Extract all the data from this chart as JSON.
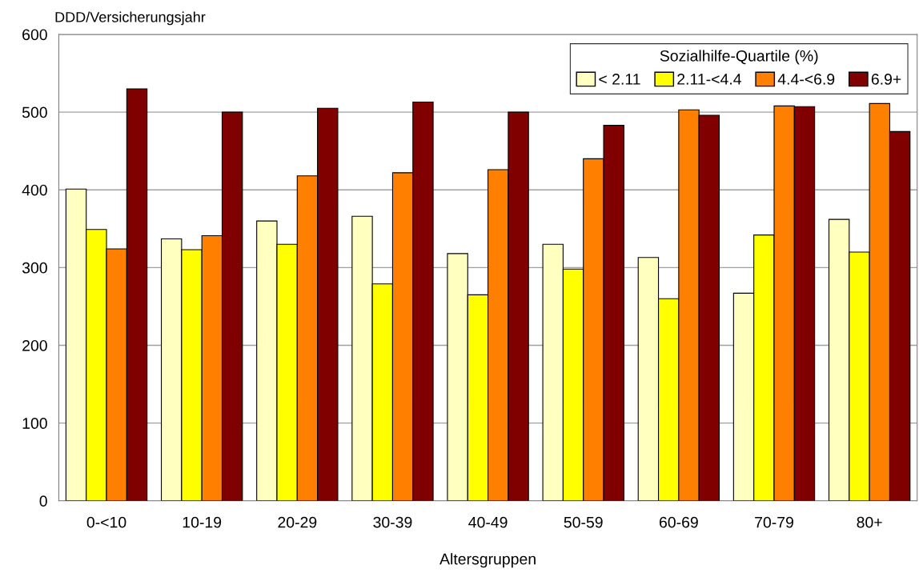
{
  "chart_data": {
    "type": "bar",
    "ylabel": "DDD/Versicherungsjahr",
    "xlabel": "Altersgruppen",
    "legend_title": "Sozialhilfe-Quartile (%)",
    "categories": [
      "0-<10",
      "10-19",
      "20-29",
      "30-39",
      "40-49",
      "50-59",
      "60-69",
      "70-79",
      "80+"
    ],
    "series": [
      {
        "name": "< 2.11",
        "color": "#ffffc0",
        "values": [
          401,
          337,
          360,
          366,
          318,
          330,
          313,
          267,
          362
        ]
      },
      {
        "name": "2.11-<4.4",
        "color": "#ffff00",
        "values": [
          349,
          323,
          330,
          279,
          265,
          298,
          260,
          342,
          320
        ]
      },
      {
        "name": "4.4-<6.9",
        "color": "#ff8000",
        "values": [
          324,
          341,
          418,
          422,
          426,
          440,
          503,
          508,
          511
        ]
      },
      {
        "name": "6.9+",
        "color": "#800000",
        "values": [
          530,
          500,
          505,
          513,
          500,
          483,
          496,
          507,
          475
        ]
      }
    ],
    "ylim": [
      0,
      600
    ],
    "yticks": [
      0,
      100,
      200,
      300,
      400,
      500,
      600
    ],
    "grid": "y",
    "legend": "top right"
  }
}
